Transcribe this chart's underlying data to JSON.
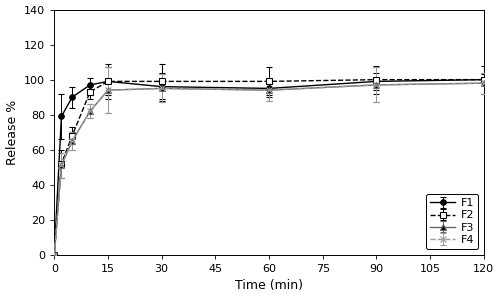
{
  "time_points": [
    0,
    2,
    5,
    10,
    15,
    30,
    60,
    90,
    120
  ],
  "F1": {
    "mean": [
      0,
      79,
      90,
      97,
      99,
      96,
      95,
      99,
      100
    ],
    "sd": [
      0,
      13,
      6,
      4,
      8,
      8,
      5,
      5,
      3
    ]
  },
  "F2": {
    "mean": [
      0,
      52,
      68,
      93,
      99,
      99,
      99,
      100,
      100
    ],
    "sd": [
      0,
      8,
      5,
      4,
      10,
      10,
      8,
      8,
      8
    ]
  },
  "F3": {
    "mean": [
      0,
      51,
      65,
      82,
      94,
      95,
      94,
      97,
      98
    ],
    "sd": [
      0,
      7,
      5,
      4,
      13,
      8,
      6,
      10,
      6
    ]
  },
  "F4": {
    "mean": [
      0,
      51,
      65,
      82,
      94,
      95,
      94,
      97,
      98
    ],
    "sd": [
      0,
      7,
      5,
      4,
      13,
      8,
      6,
      10,
      6
    ]
  },
  "xlabel": "Time (min)",
  "ylabel": "Release %",
  "xlim": [
    0,
    120
  ],
  "ylim": [
    0,
    140
  ],
  "yticks": [
    0,
    20,
    40,
    60,
    80,
    100,
    120,
    140
  ],
  "xticks": [
    0,
    15,
    30,
    45,
    60,
    75,
    90,
    105,
    120
  ],
  "legend_labels": [
    "F1",
    "F2",
    "F3",
    "F4"
  ],
  "line_colors": [
    "#000000",
    "#000000",
    "#666666",
    "#999999"
  ],
  "line_styles": [
    "-",
    "--",
    "-",
    "--"
  ],
  "markers": [
    "o",
    "s",
    "^",
    "x"
  ],
  "marker_sizes": [
    4,
    4,
    4,
    5
  ],
  "marker_fills": [
    "#000000",
    "#ffffff",
    "#000000",
    "#000000"
  ],
  "xlabel_fontsize": 9,
  "ylabel_fontsize": 9,
  "tick_fontsize": 8,
  "legend_fontsize": 8,
  "linewidth": 1.0
}
